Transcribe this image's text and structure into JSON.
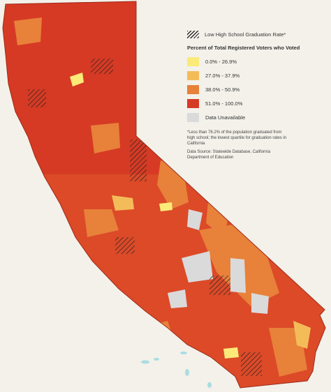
{
  "legend": {
    "hatch_label": "Low High School Graduation Rate*",
    "heading": "Percent of Total Registered Voters who Voted",
    "categories": [
      {
        "label": "0.0% - 26.9%",
        "color": "#fbea78"
      },
      {
        "label": "27.0% - 37.9%",
        "color": "#f4bc59"
      },
      {
        "label": "38.0% - 50.9%",
        "color": "#e8813a"
      },
      {
        "label": "51.0% - 100.0%",
        "color": "#d63a24"
      },
      {
        "label": "Data Unavailable",
        "color": "#dadada"
      }
    ]
  },
  "notes": {
    "footnote": "*Less than 76.2% of the population graduated from high school; the lowest quartile for graduation rates in California",
    "source": "Data Source: Statewide Database, California Department of Education"
  },
  "colors": {
    "background": "#f3f1ea",
    "outline": "#9e2a17",
    "ocean_islands": "#a9dde0"
  }
}
